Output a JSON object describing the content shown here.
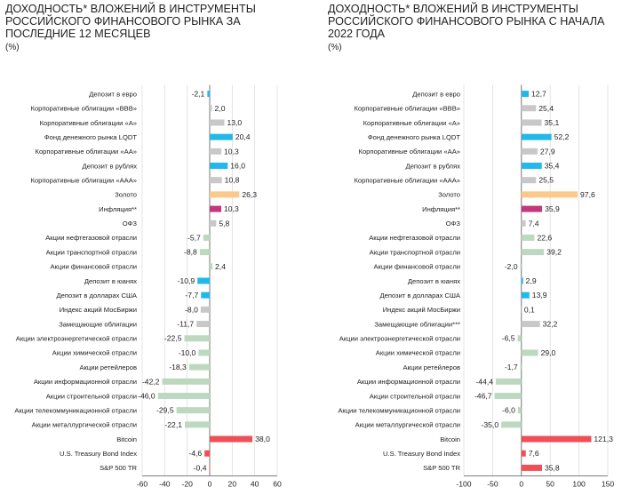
{
  "colors": {
    "grey": "#c8c8c8",
    "green": "#bcd9bf",
    "blue": "#22b8ea",
    "orange": "#fbc98a",
    "magenta": "#c4377a",
    "red": "#ef4f57",
    "grid": "#dddddd",
    "axis": "#555555"
  },
  "chart_data": [
    {
      "type": "bar",
      "orientation": "horizontal",
      "title": "ДОХОДНОСТЬ* ВЛОЖЕНИЙ В ИНСТРУМЕНТЫ РОССИЙСКОГО ФИНАНСОВОГО РЫНКА ЗА ПОСЛЕДНИЕ 12 МЕСЯЦЕВ",
      "unit": "(%)",
      "xlim": [
        -60,
        60
      ],
      "xticks": [
        -60,
        -40,
        -20,
        0,
        20,
        40,
        60
      ],
      "grid": true,
      "categories": [
        "Депозит в евро",
        "Корпоративные облигации «BBB»",
        "Корпоративные облигации «А»",
        "Фонд денежного рынка LQDT",
        "Корпоративные облигации «АА»",
        "Депозит в рублях",
        "Корпоративные облигации «ААА»",
        "Золото",
        "Инфляция**",
        "ОФЗ",
        "Акции нефтегазовой отрасли",
        "Акции транспортной отрасли",
        "Акции финансовой отрасли",
        "Депозит в юанях",
        "Депозит в долларах США",
        "Индекс акций МосБиржи",
        "Замещающие облигации",
        "Акции электроэнергетической отрасли",
        "Акции химической отрасли",
        "Акции ретейлеров",
        "Акции информационной отрасли",
        "Акции строительной отрасли",
        "Акции телекоммуникационной отрасли",
        "Акции металлургической отрасли",
        "Bitcoin",
        "U.S. Treasury Bond Index",
        "S&P 500 TR"
      ],
      "values": [
        -2.1,
        2.0,
        13.0,
        20.4,
        10.3,
        16.0,
        10.8,
        26.3,
        10.3,
        5.8,
        -5.7,
        -8.8,
        2.4,
        -10.9,
        -7.7,
        -8.0,
        -11.7,
        -22.5,
        -10.0,
        -18.3,
        -42.2,
        -46.0,
        -29.5,
        -22.1,
        38.0,
        -4.6,
        -0.4
      ],
      "labels": [
        "-2,1",
        "2,0",
        "13,0",
        "20,4",
        "10,3",
        "16,0",
        "10,8",
        "26,3",
        "10,3",
        "5,8",
        "-5,7",
        "-8,8",
        "2,4",
        "-10,9",
        "-7,7",
        "-8,0",
        "-11,7",
        "-22,5",
        "-10,0",
        "-18,3",
        "-42,2",
        "-46,0",
        "-29,5",
        "-22,1",
        "38,0",
        "-4,6",
        "-0,4"
      ],
      "bar_colors": [
        "blue",
        "grey",
        "grey",
        "blue",
        "grey",
        "blue",
        "grey",
        "orange",
        "magenta",
        "grey",
        "green",
        "green",
        "green",
        "blue",
        "blue",
        "grey",
        "grey",
        "green",
        "green",
        "green",
        "green",
        "green",
        "green",
        "green",
        "red",
        "red",
        "red"
      ]
    },
    {
      "type": "bar",
      "orientation": "horizontal",
      "title": "ДОХОДНОСТЬ* ВЛОЖЕНИЙ В ИНСТРУМЕНТЫ РОССИЙСКОГО ФИНАНСОВОГО РЫНКА С НАЧАЛА 2022 ГОДА",
      "unit": "(%)",
      "xlim": [
        -100,
        150
      ],
      "xticks": [
        -100,
        -50,
        0,
        50,
        100,
        150
      ],
      "grid": true,
      "categories": [
        "Депозит в евро",
        "Корпоративные облигации «BBB»",
        "Корпоративные облигации «А»",
        "Фонд денежного рынка LQDT",
        "Корпоративные облигации «АА»",
        "Депозит в рублях",
        "Корпоративные облигации «ААА»",
        "Золото",
        "Инфляция**",
        "ОФЗ",
        "Акции нефтегазовой отрасли",
        "Акции транспортной отрасли",
        "Акции финансовой отрасли",
        "Депозит в юанях",
        "Депозит в долларах США",
        "Индекс акций МосБиржи",
        "Замещающие облигации***",
        "Акции электроэнергетической отрасли",
        "Акции химической отрасли",
        "Акции ретейлеров",
        "Акции информационной отрасли",
        "Акции строительной отрасли",
        "Акции телекоммуникационной отрасли",
        "Акции металлургической отрасли",
        "Bitcoin",
        "U.S. Treasury Bond Index",
        "S&P 500 TR"
      ],
      "values": [
        12.7,
        25.4,
        35.1,
        52.2,
        27.9,
        35.4,
        25.5,
        97.6,
        35.9,
        7.4,
        22.6,
        39.2,
        -2.0,
        2.9,
        13.9,
        0.1,
        32.2,
        -6.5,
        29.0,
        -1.7,
        -44.4,
        -46.7,
        -6.0,
        -35.0,
        121.3,
        7.6,
        35.8
      ],
      "labels": [
        "12,7",
        "25,4",
        "35,1",
        "52,2",
        "27,9",
        "35,4",
        "25,5",
        "97,6",
        "35,9",
        "7,4",
        "22,6",
        "39,2",
        "-2,0",
        "2,9",
        "13,9",
        "0,1",
        "32,2",
        "-6,5",
        "29,0",
        "-1,7",
        "-44,4",
        "-46,7",
        "-6,0",
        "-35,0",
        "121,3",
        "7,6",
        "35,8"
      ],
      "bar_colors": [
        "blue",
        "grey",
        "grey",
        "blue",
        "grey",
        "blue",
        "grey",
        "orange",
        "magenta",
        "grey",
        "green",
        "green",
        "green",
        "blue",
        "blue",
        "grey",
        "grey",
        "green",
        "green",
        "green",
        "green",
        "green",
        "green",
        "green",
        "red",
        "red",
        "red"
      ]
    }
  ]
}
